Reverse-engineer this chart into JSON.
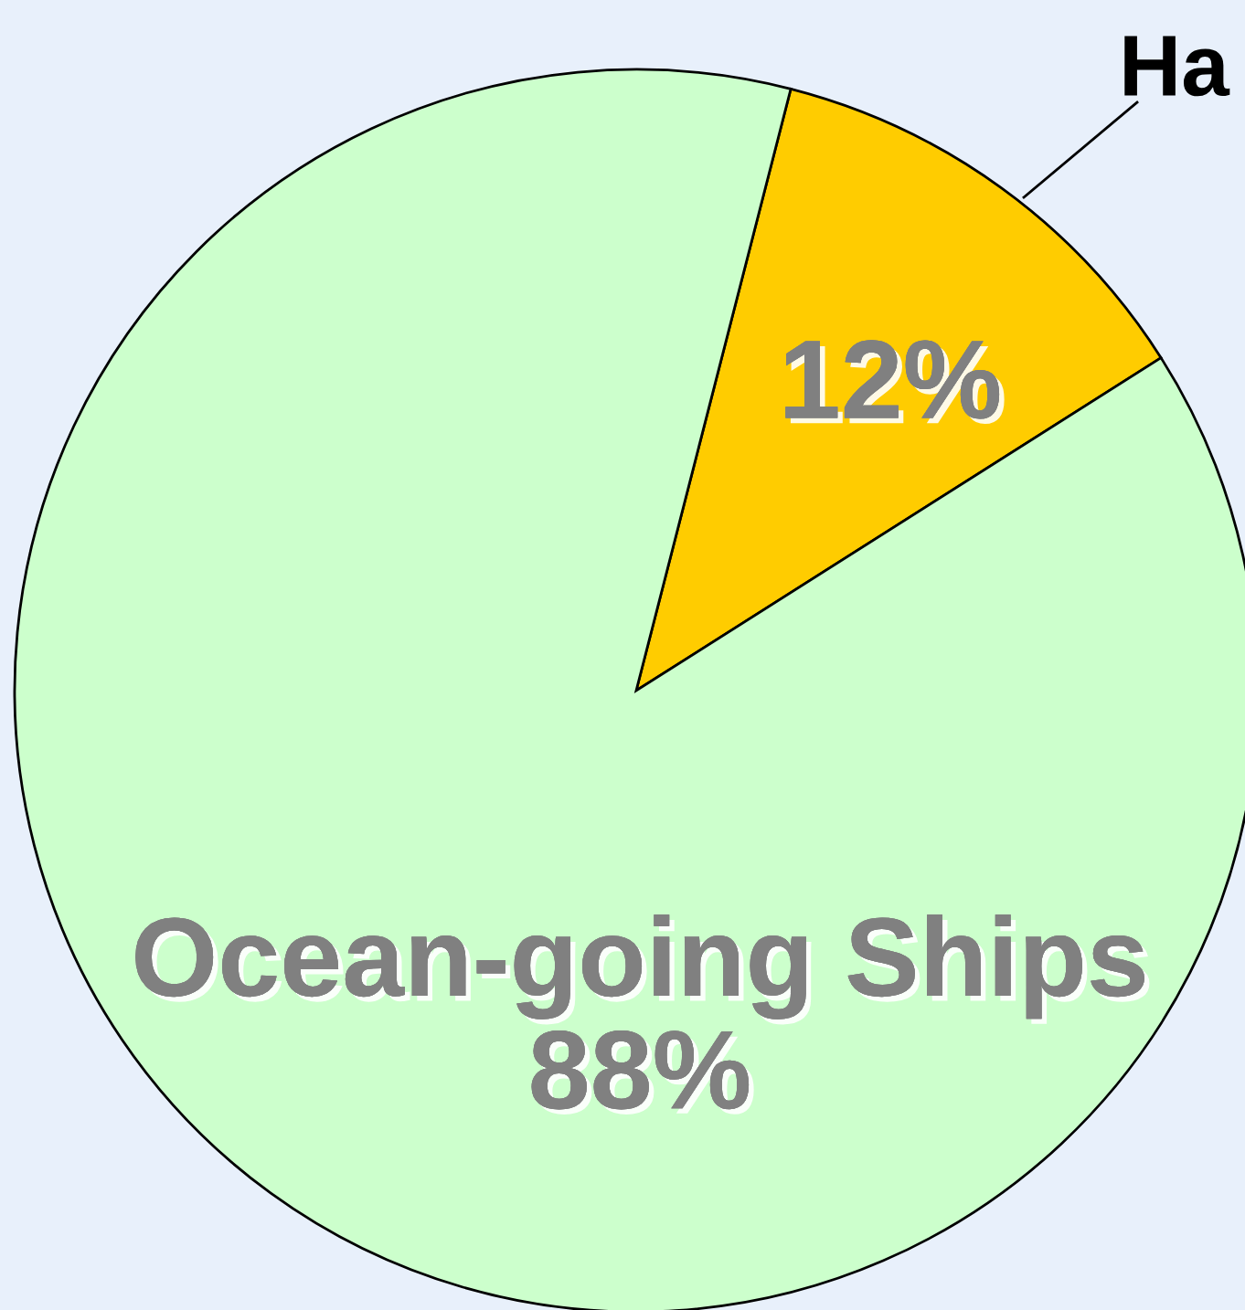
{
  "chart_data": {
    "type": "pie",
    "categories": [
      "Ha",
      "Ocean-going Ships"
    ],
    "values": [
      12,
      88
    ],
    "colors": [
      "#ffcc00",
      "#ccffcc"
    ],
    "value_labels": [
      "12%",
      "88%"
    ]
  }
}
